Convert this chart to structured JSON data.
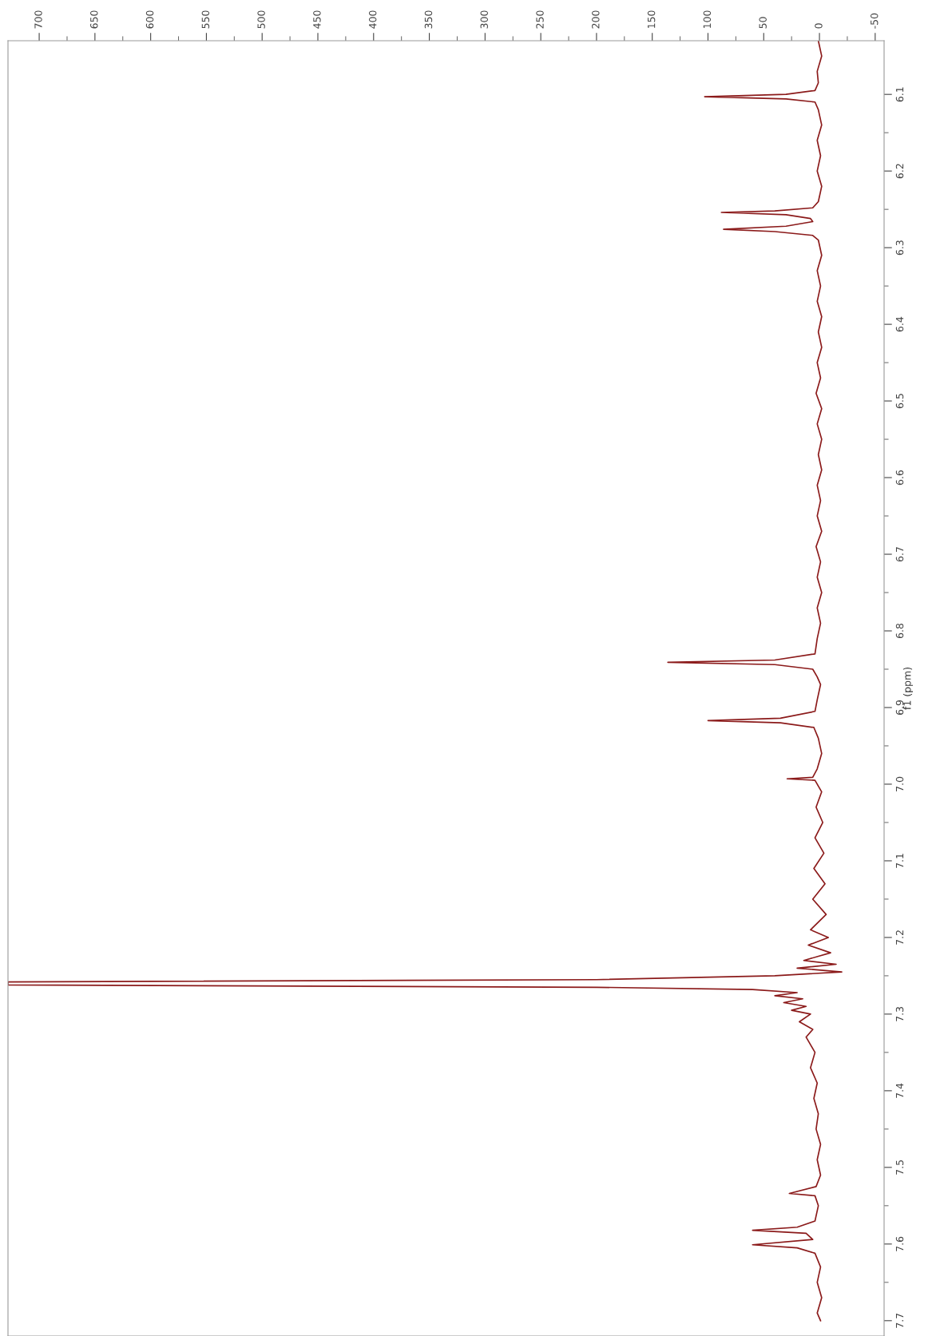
{
  "chart_data": {
    "type": "line",
    "orientation": "horizontal",
    "ylabel": "f1 (ppm)",
    "ylim": [
      7.72,
      6.03
    ],
    "yticks": [
      6.1,
      {
        "value": 6.15,
        "label": null
      },
      6.2,
      {
        "value": 6.25,
        "label": null
      },
      6.3,
      {
        "value": 6.35,
        "label": null
      },
      6.4,
      {
        "value": 6.45,
        "label": null
      },
      6.5,
      {
        "value": 6.55,
        "label": null
      },
      6.6,
      {
        "value": 6.65,
        "label": null
      },
      6.7,
      {
        "value": 6.75,
        "label": null
      },
      6.8,
      {
        "value": 6.85,
        "label": null
      },
      6.9,
      {
        "value": 6.95,
        "label": null
      },
      {
        "value": 7.0,
        "label": "7.0"
      },
      {
        "value": 7.05,
        "label": null
      },
      7.1,
      {
        "value": 7.15,
        "label": null
      },
      7.2,
      {
        "value": 7.25,
        "label": null
      },
      7.3,
      {
        "value": 7.35,
        "label": null
      },
      7.4,
      {
        "value": 7.45,
        "label": null
      },
      7.5,
      {
        "value": 7.55,
        "label": null
      },
      7.6,
      {
        "value": 7.65,
        "label": null
      },
      7.7
    ],
    "xlim": [
      728,
      -58
    ],
    "xticks": [
      700,
      {
        "value": 675,
        "label": null
      },
      650,
      {
        "value": 625,
        "label": null
      },
      600,
      {
        "value": 575,
        "label": null
      },
      550,
      {
        "value": 525,
        "label": null
      },
      500,
      {
        "value": 475,
        "label": null
      },
      450,
      {
        "value": 425,
        "label": null
      },
      400,
      {
        "value": 375,
        "label": null
      },
      350,
      {
        "value": 325,
        "label": null
      },
      300,
      {
        "value": 275,
        "label": null
      },
      250,
      {
        "value": 225,
        "label": null
      },
      200,
      {
        "value": 175,
        "label": null
      },
      150,
      {
        "value": 125,
        "label": null
      },
      100,
      {
        "value": 75,
        "label": null
      },
      50,
      {
        "value": 25,
        "label": null
      },
      0,
      {
        "value": -25,
        "label": null
      },
      {
        "value": -50,
        "label": "-50"
      }
    ],
    "marker": "none",
    "line_style": "solid",
    "grid": false,
    "series": [
      {
        "color": "#8b1a1a",
        "x": [
          6.03,
          6.05,
          6.07,
          6.085,
          6.095,
          6.1,
          6.103,
          6.106,
          6.11,
          6.12,
          6.14,
          6.16,
          6.18,
          6.2,
          6.22,
          6.24,
          6.248,
          6.252,
          6.254,
          6.257,
          6.262,
          6.266,
          6.272,
          6.276,
          6.279,
          6.284,
          6.29,
          6.31,
          6.33,
          6.35,
          6.37,
          6.39,
          6.41,
          6.43,
          6.45,
          6.47,
          6.49,
          6.51,
          6.53,
          6.55,
          6.57,
          6.59,
          6.61,
          6.63,
          6.65,
          6.67,
          6.69,
          6.71,
          6.73,
          6.75,
          6.77,
          6.79,
          6.81,
          6.83,
          6.838,
          6.841,
          6.844,
          6.85,
          6.86,
          6.87,
          6.89,
          6.905,
          6.914,
          6.917,
          6.92,
          6.926,
          6.94,
          6.96,
          6.98,
          6.991,
          6.993,
          6.995,
          7.01,
          7.03,
          7.05,
          7.07,
          7.09,
          7.11,
          7.13,
          7.15,
          7.17,
          7.19,
          7.2,
          7.21,
          7.22,
          7.23,
          7.235,
          7.24,
          7.245,
          7.25,
          7.255,
          7.258,
          7.262,
          7.265,
          7.268,
          7.272,
          7.276,
          7.28,
          7.285,
          7.29,
          7.295,
          7.3,
          7.31,
          7.32,
          7.33,
          7.35,
          7.37,
          7.39,
          7.41,
          7.43,
          7.45,
          7.47,
          7.49,
          7.51,
          7.525,
          7.534,
          7.537,
          7.55,
          7.57,
          7.578,
          7.582,
          7.586,
          7.594,
          7.601,
          7.605,
          7.612,
          7.63,
          7.65,
          7.67,
          7.69,
          7.7
        ],
        "values": [
          1,
          -2,
          2,
          1,
          4,
          30,
          103,
          30,
          4,
          1,
          -2,
          2,
          -1,
          2,
          -2,
          1,
          6,
          40,
          88,
          30,
          8,
          6,
          30,
          86,
          40,
          6,
          1,
          -2,
          2,
          -1,
          2,
          -2,
          1,
          -2,
          2,
          -1,
          3,
          -2,
          2,
          -2,
          1,
          -2,
          2,
          -1,
          2,
          -2,
          3,
          -1,
          2,
          -2,
          2,
          -1,
          2,
          4,
          40,
          136,
          40,
          6,
          2,
          -1,
          2,
          4,
          35,
          100,
          35,
          5,
          1,
          -2,
          2,
          6,
          29,
          4,
          -2,
          3,
          -3,
          4,
          -4,
          5,
          -5,
          6,
          -6,
          8,
          -8,
          10,
          -10,
          14,
          -15,
          20,
          -20,
          40,
          200,
          728,
          728,
          200,
          60,
          20,
          40,
          15,
          32,
          12,
          25,
          8,
          18,
          6,
          12,
          4,
          8,
          2,
          5,
          1,
          3,
          -1,
          2,
          -1,
          3,
          27,
          4,
          1,
          4,
          20,
          60,
          12,
          6,
          60,
          20,
          4,
          -1,
          2,
          -2,
          2,
          -1
        ]
      }
    ]
  }
}
